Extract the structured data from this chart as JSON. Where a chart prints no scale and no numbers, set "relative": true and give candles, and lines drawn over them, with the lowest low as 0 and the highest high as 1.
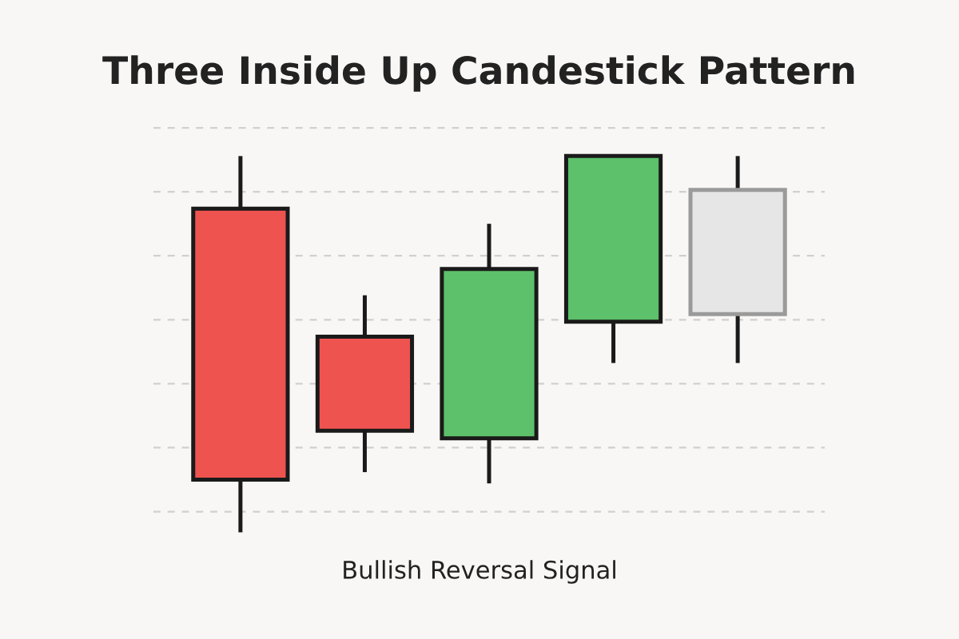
{
  "chart_data": {
    "type": "candlestick",
    "title": "Three Inside Up Candestick Pattern",
    "annotations": [
      "Bullish Reversal Signal"
    ],
    "relative": true,
    "grid": "y",
    "categories": [
      null,
      null,
      null,
      null,
      null
    ],
    "ohlc": [
      [
        0.86,
        1.0,
        0.0,
        0.14
      ],
      [
        0.52,
        0.63,
        0.16,
        0.27
      ],
      [
        0.25,
        0.82,
        0.13,
        0.7
      ],
      [
        0.56,
        1.0,
        0.45,
        1.0
      ],
      [
        0.58,
        1.0,
        0.45,
        0.91
      ]
    ],
    "colors": [
      "#ef5350",
      "#ef5350",
      "#5cc16a",
      "#5cc16a",
      "#e6e6e6"
    ]
  }
}
